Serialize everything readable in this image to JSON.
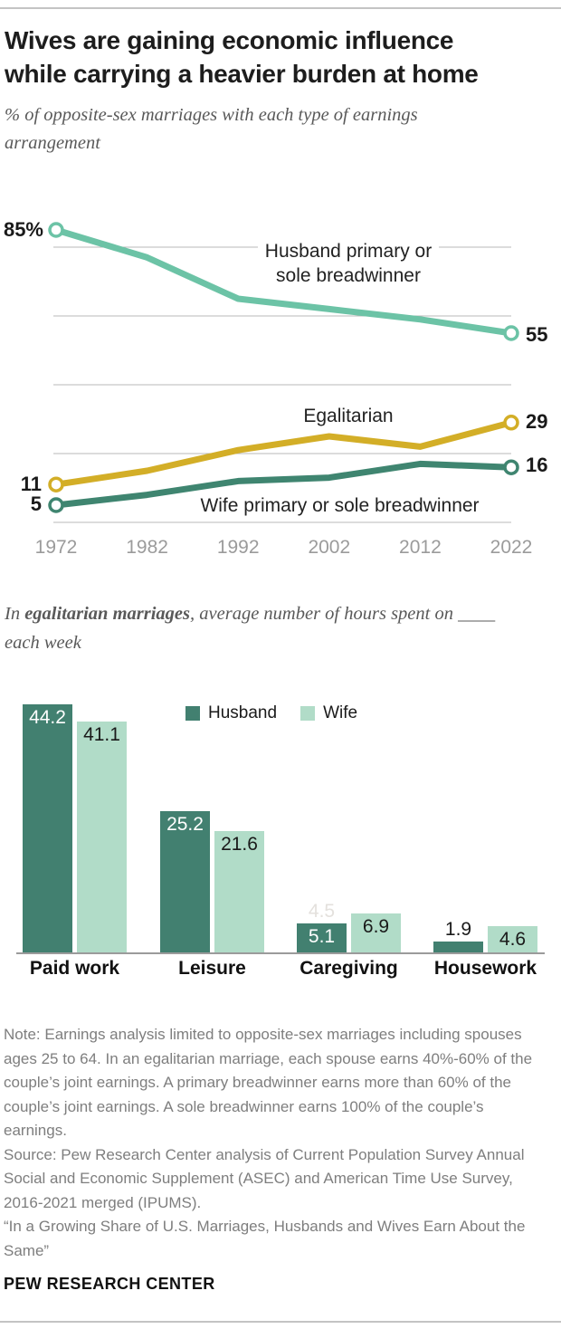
{
  "header": {
    "title_lines": [
      "Wives are gaining economic influence",
      "while carrying a heavier burden at home"
    ],
    "subtitle": "% of opposite-sex marriages with each type of earnings arrangement"
  },
  "chart_data": [
    {
      "type": "line",
      "title": "% of opposite-sex marriages with each type of earnings arrangement",
      "x": [
        "1972",
        "1982",
        "1992",
        "2002",
        "2012",
        "2022"
      ],
      "ylim": [
        0,
        87
      ],
      "gridlines": [
        0,
        20,
        40,
        60,
        80
      ],
      "grid_color": "#B9B9B9",
      "axis_label_color": "#9B9B9B",
      "series": [
        {
          "name": "Husband primary or sole breadwinner",
          "color": "#6CC3A6",
          "values": [
            85,
            77,
            65,
            62,
            59,
            55
          ],
          "start_label": "85%",
          "end_label": "55"
        },
        {
          "name": "Egalitarian",
          "color": "#D3AE27",
          "values": [
            11,
            15,
            21,
            25,
            22,
            29
          ],
          "start_label": "11",
          "end_label": "29"
        },
        {
          "name": "Wife primary or sole breadwinner",
          "color": "#3F8570",
          "values": [
            5,
            8,
            12,
            13,
            17,
            16
          ],
          "start_label": "5",
          "end_label": "16"
        }
      ]
    },
    {
      "type": "bar",
      "subtitle_prefix": "In ",
      "subtitle_bold": "egalitarian marriages",
      "subtitle_suffix": ", average number of hours spent on ____ each week",
      "categories": [
        "Paid work",
        "Leisure",
        "Caregiving",
        "Housework"
      ],
      "series": [
        {
          "name": "Husband",
          "color": "#428070",
          "values": [
            44.2,
            25.2,
            5.1,
            1.9
          ]
        },
        {
          "name": "Wife",
          "color": "#B1DCC8",
          "values": [
            41.1,
            21.6,
            6.9,
            4.6
          ]
        }
      ],
      "ghost_label": "4.5",
      "legend": [
        "Husband",
        "Wife"
      ]
    }
  ],
  "footer": {
    "note": "Note: Earnings analysis limited to opposite-sex marriages including spouses ages 25 to 64. In an egalitarian marriage, each spouse earns 40%-60% of the couple’s joint earnings. A primary breadwinner earns more than 60% of the couple’s joint earnings. A sole breadwinner earns 100% of the couple’s earnings.",
    "source": "Source: Pew Research Center analysis of Current Population Survey Annual Social and Economic Supplement (ASEC) and American Time Use Survey, 2016-2021 merged (IPUMS).",
    "quote": "“In a Growing Share of U.S. Marriages, Husbands and Wives Earn About the Same”",
    "brand": "PEW RESEARCH CENTER"
  }
}
